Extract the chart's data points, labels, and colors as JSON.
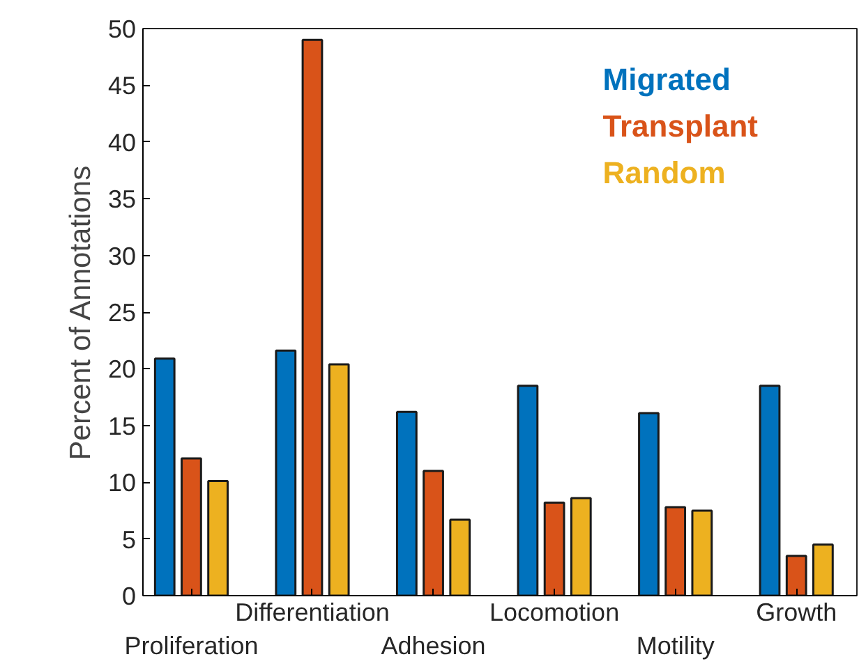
{
  "chart_data": {
    "type": "bar",
    "ylabel": "Percent of Annotations",
    "categories": [
      "Proliferation",
      "Differentiation",
      "Adhesion",
      "Locomotion",
      "Motility",
      "Growth"
    ],
    "series": [
      {
        "name": "Migrated",
        "color": "#0072bd",
        "values": [
          20.9,
          21.6,
          16.2,
          18.5,
          16.1,
          18.5
        ]
      },
      {
        "name": "Transplant",
        "color": "#d95319",
        "values": [
          12.1,
          49.0,
          11.0,
          8.2,
          7.8,
          3.5
        ]
      },
      {
        "name": "Random",
        "color": "#edb120",
        "values": [
          10.1,
          20.4,
          6.7,
          8.6,
          7.5,
          4.5
        ]
      }
    ],
    "ylim": [
      0,
      50
    ],
    "yticks": [
      0,
      5,
      10,
      15,
      20,
      25,
      30,
      35,
      40,
      45,
      50
    ],
    "grid": false,
    "legend": "top right"
  }
}
